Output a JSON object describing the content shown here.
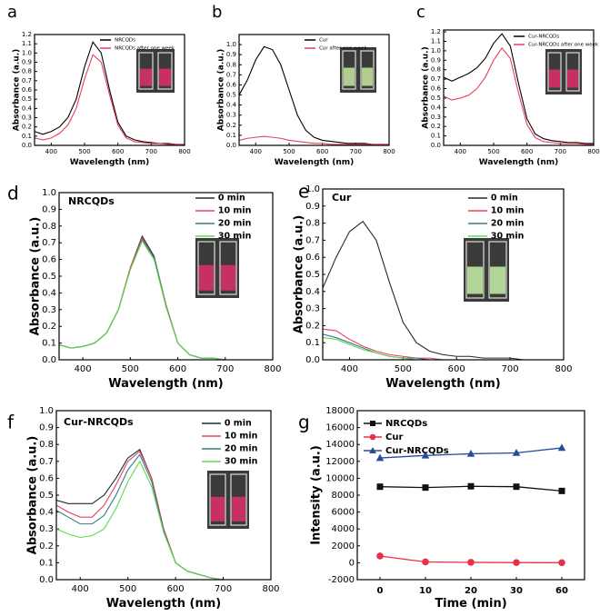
{
  "chart_data": [
    {
      "type": "line",
      "panel_label": "a",
      "x_label": "Wavelength (nm)",
      "y_label": "Absorbance (a.u.)",
      "x": [
        350,
        375,
        400,
        425,
        450,
        475,
        500,
        525,
        550,
        575,
        600,
        625,
        650,
        675,
        700,
        725,
        750,
        775,
        800
      ],
      "series": [
        {
          "name": "NRCQDs",
          "color": "#000000",
          "values": [
            0.15,
            0.12,
            0.15,
            0.2,
            0.3,
            0.5,
            0.85,
            1.12,
            1.0,
            0.6,
            0.25,
            0.1,
            0.06,
            0.04,
            0.03,
            0.02,
            0.02,
            0.01,
            0.01
          ]
        },
        {
          "name": "NRCQDs after one week",
          "color": "#e8405a",
          "values": [
            0.08,
            0.06,
            0.08,
            0.13,
            0.22,
            0.4,
            0.72,
            0.98,
            0.9,
            0.55,
            0.22,
            0.08,
            0.04,
            0.03,
            0.02,
            0.02,
            0.01,
            0.01,
            0.01
          ]
        }
      ],
      "xlim": [
        350,
        800
      ],
      "xticks": [
        400,
        500,
        600,
        700,
        800
      ],
      "ylim": [
        0,
        1.2
      ],
      "yticks": [
        {
          "value": 0,
          "label": "0.0"
        },
        0.1,
        0.2,
        0.3,
        0.4,
        0.5,
        0.6,
        0.7,
        0.8,
        0.9,
        {
          "value": 1,
          "label": "1.0"
        },
        1.1,
        1.2
      ]
    },
    {
      "type": "line",
      "panel_label": "b",
      "x_label": "Wavelength (nm)",
      "y_label": "Absorbance (a.u.)",
      "x": [
        350,
        375,
        400,
        425,
        450,
        475,
        500,
        525,
        550,
        575,
        600,
        625,
        650,
        675,
        700,
        725,
        750,
        775,
        800
      ],
      "series": [
        {
          "name": "Cur",
          "color": "#000000",
          "values": [
            0.5,
            0.65,
            0.85,
            0.98,
            0.95,
            0.8,
            0.55,
            0.3,
            0.15,
            0.08,
            0.05,
            0.04,
            0.03,
            0.02,
            0.02,
            0.02,
            0.01,
            0.01,
            0.01
          ]
        },
        {
          "name": "Cur after one week",
          "color": "#e8405a",
          "values": [
            0.05,
            0.07,
            0.08,
            0.09,
            0.08,
            0.07,
            0.05,
            0.04,
            0.03,
            0.02,
            0.02,
            0.01,
            0.01,
            0.01,
            0.01,
            0.01,
            0.01,
            0.01,
            0.01
          ]
        }
      ],
      "xlim": [
        350,
        800
      ],
      "xticks": [
        400,
        500,
        600,
        700,
        800
      ],
      "ylim": [
        0,
        1.1
      ],
      "yticks": [
        {
          "value": 0,
          "label": "0.0"
        },
        0.1,
        0.2,
        0.3,
        0.4,
        0.5,
        0.6,
        0.7,
        0.8,
        0.9,
        {
          "value": 1,
          "label": "1.0"
        }
      ]
    },
    {
      "type": "line",
      "panel_label": "c",
      "x_label": "Wavelength (nm)",
      "y_label": "Absorbance (a.u.)",
      "x": [
        350,
        375,
        400,
        425,
        450,
        475,
        500,
        525,
        550,
        575,
        600,
        625,
        650,
        675,
        700,
        725,
        750,
        775,
        800
      ],
      "series": [
        {
          "name": "Cur-NRCQDs",
          "color": "#000000",
          "values": [
            0.72,
            0.68,
            0.72,
            0.76,
            0.82,
            0.92,
            1.08,
            1.18,
            1.05,
            0.65,
            0.28,
            0.12,
            0.07,
            0.05,
            0.04,
            0.03,
            0.03,
            0.02,
            0.02
          ]
        },
        {
          "name": "Cur-NRCQDs after one week",
          "color": "#e8405a",
          "values": [
            0.52,
            0.48,
            0.5,
            0.53,
            0.6,
            0.72,
            0.9,
            1.03,
            0.92,
            0.55,
            0.22,
            0.08,
            0.04,
            0.03,
            0.02,
            0.02,
            0.02,
            0.01,
            0.01
          ]
        }
      ],
      "xlim": [
        350,
        800
      ],
      "xticks": [
        400,
        500,
        600,
        700,
        800
      ],
      "ylim": [
        0,
        1.22
      ],
      "yticks": [
        {
          "value": 0,
          "label": "0.0"
        },
        0.1,
        0.2,
        0.3,
        0.4,
        0.5,
        0.6,
        0.7,
        0.8,
        0.9,
        {
          "value": 1,
          "label": "1.0"
        },
        1.1,
        1.2
      ]
    },
    {
      "type": "line",
      "panel_label": "d",
      "annotation": "NRCQDs",
      "x_label": "Wavelength (nm)",
      "y_label": "Absorbance (a.u.)",
      "x": [
        350,
        375,
        400,
        425,
        450,
        475,
        500,
        525,
        550,
        575,
        600,
        625,
        650,
        675,
        700,
        725,
        750,
        775,
        800
      ],
      "series": [
        {
          "name": "0 min",
          "color": "#1b2a3a",
          "values": [
            0.09,
            0.07,
            0.08,
            0.1,
            0.16,
            0.3,
            0.55,
            0.74,
            0.62,
            0.33,
            0.1,
            0.03,
            0.01,
            0.01,
            0,
            0,
            0,
            0,
            0
          ]
        },
        {
          "name": "10 min",
          "color": "#e8405a",
          "values": [
            0.09,
            0.07,
            0.08,
            0.1,
            0.16,
            0.3,
            0.55,
            0.73,
            0.61,
            0.33,
            0.1,
            0.03,
            0.01,
            0.01,
            0,
            0,
            0,
            0,
            0
          ]
        },
        {
          "name": "20 min",
          "color": "#3a7a8a",
          "values": [
            0.09,
            0.07,
            0.08,
            0.1,
            0.16,
            0.3,
            0.54,
            0.72,
            0.61,
            0.32,
            0.1,
            0.03,
            0.01,
            0.01,
            0,
            0,
            0,
            0,
            0
          ]
        },
        {
          "name": "30 min",
          "color": "#5ed84e",
          "values": [
            0.09,
            0.07,
            0.08,
            0.1,
            0.16,
            0.3,
            0.54,
            0.71,
            0.6,
            0.32,
            0.1,
            0.03,
            0.01,
            0.01,
            0,
            0,
            0,
            0,
            0
          ]
        }
      ],
      "xlim": [
        350,
        800
      ],
      "xticks": [
        400,
        500,
        600,
        700,
        800
      ],
      "ylim": [
        0,
        1
      ],
      "yticks": [
        {
          "value": 0,
          "label": "0.0"
        },
        0.1,
        0.2,
        0.3,
        0.4,
        0.5,
        0.6,
        0.7,
        0.8,
        0.9,
        {
          "value": 1,
          "label": "1.0"
        }
      ]
    },
    {
      "type": "line",
      "panel_label": "e",
      "annotation": "Cur",
      "x_label": "Wavelength (nm)",
      "y_label": "Absorbance (a.u.)",
      "x": [
        350,
        375,
        400,
        425,
        450,
        475,
        500,
        525,
        550,
        575,
        600,
        625,
        650,
        675,
        700,
        725,
        750,
        775,
        800
      ],
      "series": [
        {
          "name": "0 min",
          "color": "#1b2a3a",
          "values": [
            0.42,
            0.6,
            0.75,
            0.81,
            0.7,
            0.45,
            0.22,
            0.1,
            0.05,
            0.03,
            0.02,
            0.02,
            0.01,
            0.01,
            0.01,
            0,
            0,
            0,
            0
          ]
        },
        {
          "name": "10 min",
          "color": "#e8405a",
          "values": [
            0.18,
            0.17,
            0.12,
            0.08,
            0.05,
            0.03,
            0.02,
            0.01,
            0.01,
            0,
            0,
            0,
            0,
            0,
            0,
            0,
            0,
            0,
            0
          ]
        },
        {
          "name": "20 min",
          "color": "#3a7a8a",
          "values": [
            0.15,
            0.13,
            0.1,
            0.07,
            0.04,
            0.02,
            0.01,
            0.01,
            0,
            0,
            0,
            0,
            0,
            0,
            0,
            0,
            0,
            0,
            0
          ]
        },
        {
          "name": "30 min",
          "color": "#5ed84e",
          "values": [
            0.13,
            0.12,
            0.09,
            0.06,
            0.04,
            0.02,
            0.01,
            0,
            0,
            0,
            0,
            0,
            0,
            0,
            0,
            0,
            0,
            0,
            0
          ]
        }
      ],
      "xlim": [
        350,
        800
      ],
      "xticks": [
        400,
        500,
        600,
        700,
        800
      ],
      "ylim": [
        0,
        1
      ],
      "yticks": [
        {
          "value": 0,
          "label": "0.0"
        },
        0.1,
        0.2,
        0.3,
        0.4,
        0.5,
        0.6,
        0.7,
        0.8,
        0.9,
        {
          "value": 1,
          "label": "1.0"
        }
      ]
    },
    {
      "type": "line",
      "panel_label": "f",
      "annotation": "Cur-NRCQDs",
      "x_label": "Wavelength (nm)",
      "y_label": "Absorbance (a.u.)",
      "x": [
        350,
        375,
        400,
        425,
        450,
        475,
        500,
        525,
        550,
        575,
        600,
        625,
        650,
        675,
        700,
        725,
        750,
        775,
        800
      ],
      "series": [
        {
          "name": "0 min",
          "color": "#1b2a3a",
          "values": [
            0.47,
            0.45,
            0.45,
            0.45,
            0.5,
            0.6,
            0.72,
            0.77,
            0.6,
            0.3,
            0.1,
            0.05,
            0.03,
            0.01,
            0,
            0,
            0,
            0,
            0
          ]
        },
        {
          "name": "10 min",
          "color": "#e8405a",
          "values": [
            0.44,
            0.4,
            0.37,
            0.37,
            0.44,
            0.56,
            0.7,
            0.76,
            0.6,
            0.3,
            0.1,
            0.05,
            0.03,
            0.01,
            0,
            0,
            0,
            0,
            0
          ]
        },
        {
          "name": "20 min",
          "color": "#3a7a8a",
          "values": [
            0.41,
            0.37,
            0.33,
            0.33,
            0.38,
            0.5,
            0.65,
            0.74,
            0.58,
            0.29,
            0.1,
            0.05,
            0.03,
            0.01,
            0,
            0,
            0,
            0,
            0
          ]
        },
        {
          "name": "30 min",
          "color": "#5ed84e",
          "values": [
            0.3,
            0.27,
            0.25,
            0.26,
            0.3,
            0.42,
            0.58,
            0.7,
            0.55,
            0.28,
            0.1,
            0.05,
            0.03,
            0.01,
            0,
            0,
            0,
            0,
            0
          ]
        }
      ],
      "xlim": [
        350,
        800
      ],
      "xticks": [
        400,
        500,
        600,
        700,
        800
      ],
      "ylim": [
        0,
        1
      ],
      "yticks": [
        {
          "value": 0,
          "label": "0.0"
        },
        0.1,
        0.2,
        0.3,
        0.4,
        0.5,
        0.6,
        0.7,
        0.8,
        0.9,
        {
          "value": 1,
          "label": "1.0"
        }
      ]
    },
    {
      "type": "line",
      "panel_label": "g",
      "x_label": "Time (min)",
      "y_label": "Intensity (a.u.)",
      "categories": [
        "0",
        "10",
        "20",
        "30",
        "60"
      ],
      "series": [
        {
          "name": "NRCQDs",
          "color": "#111111",
          "marker": "square",
          "values": [
            9000,
            8900,
            9050,
            9000,
            8500
          ]
        },
        {
          "name": "Cur",
          "color": "#e8304a",
          "marker": "circle",
          "values": [
            800,
            100,
            50,
            20,
            10
          ]
        },
        {
          "name": "Cur-NRCQDs",
          "color": "#2a4a9a",
          "marker": "triangle",
          "values": [
            12400,
            12700,
            12900,
            13000,
            13600
          ]
        }
      ],
      "ylim": [
        -2000,
        18000
      ],
      "yticks": [
        -2000,
        0,
        2000,
        4000,
        6000,
        8000,
        10000,
        12000,
        14000,
        16000,
        18000
      ]
    }
  ]
}
